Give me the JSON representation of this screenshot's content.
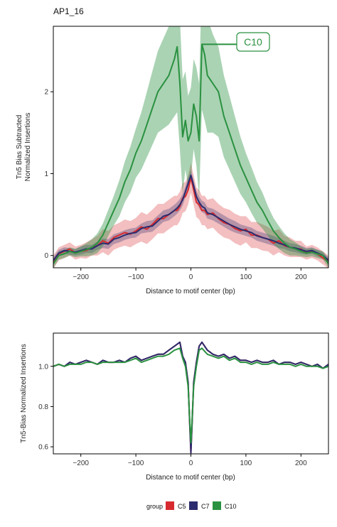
{
  "title": "AP1_16",
  "colors": {
    "C5": "#d62a2f",
    "C7": "#2b2b6e",
    "C10": "#2a9140"
  },
  "legend": {
    "title": "group",
    "items": [
      "C5",
      "C7",
      "C10"
    ]
  },
  "chart_data": [
    {
      "type": "line",
      "panel": "top",
      "title": "AP1_16",
      "xlabel": "Distance to motif center (bp)",
      "ylabel": [
        "Tn5 Bias Subtracted",
        "Normalized Insertions"
      ],
      "xlim": [
        -250,
        250
      ],
      "ylim": [
        -0.15,
        2.8
      ],
      "xticks": [
        -200,
        -100,
        0,
        100,
        200
      ],
      "xtick_labels": [
        "−200",
        "−100",
        "0",
        "100",
        "200"
      ],
      "yticks": [
        0,
        1,
        2
      ],
      "ytick_labels": [
        "0",
        "1",
        "2"
      ],
      "grid": false,
      "annotation": {
        "text": "C10",
        "series": "C10",
        "x": 20,
        "y": 2.58
      },
      "x": [
        -250,
        -240,
        -230,
        -220,
        -210,
        -200,
        -190,
        -180,
        -170,
        -160,
        -150,
        -140,
        -130,
        -120,
        -110,
        -100,
        -90,
        -80,
        -70,
        -60,
        -50,
        -40,
        -30,
        -25,
        -20,
        -15,
        -10,
        -5,
        0,
        5,
        10,
        15,
        20,
        25,
        30,
        40,
        50,
        60,
        70,
        80,
        90,
        100,
        110,
        120,
        130,
        140,
        150,
        160,
        170,
        180,
        190,
        200,
        210,
        220,
        230,
        240,
        250
      ],
      "series": [
        {
          "name": "C5",
          "values": [
            -0.08,
            0.02,
            0.05,
            0.08,
            0.03,
            0.05,
            0.06,
            0.1,
            0.12,
            0.18,
            0.15,
            0.22,
            0.25,
            0.28,
            0.26,
            0.3,
            0.35,
            0.32,
            0.38,
            0.45,
            0.45,
            0.5,
            0.55,
            0.55,
            0.6,
            0.7,
            0.72,
            0.8,
            0.95,
            0.8,
            0.65,
            0.62,
            0.55,
            0.55,
            0.5,
            0.52,
            0.45,
            0.4,
            0.38,
            0.33,
            0.3,
            0.32,
            0.25,
            0.25,
            0.22,
            0.2,
            0.15,
            0.18,
            0.12,
            0.1,
            0.08,
            0.08,
            0.03,
            0.05,
            0.02,
            -0.03,
            -0.08
          ],
          "band": [
            0.08,
            0.08,
            0.08,
            0.08,
            0.08,
            0.08,
            0.1,
            0.1,
            0.12,
            0.14,
            0.15,
            0.15,
            0.15,
            0.16,
            0.16,
            0.16,
            0.18,
            0.18,
            0.18,
            0.18,
            0.18,
            0.18,
            0.18,
            0.18,
            0.18,
            0.18,
            0.18,
            0.18,
            0.18,
            0.18,
            0.18,
            0.18,
            0.18,
            0.18,
            0.18,
            0.18,
            0.18,
            0.18,
            0.18,
            0.18,
            0.18,
            0.16,
            0.16,
            0.16,
            0.16,
            0.15,
            0.15,
            0.14,
            0.12,
            0.12,
            0.1,
            0.1,
            0.08,
            0.08,
            0.08,
            0.08,
            0.08
          ]
        },
        {
          "name": "C7",
          "values": [
            -0.06,
            0.03,
            0.06,
            0.05,
            0.04,
            0.06,
            0.08,
            0.08,
            0.12,
            0.15,
            0.14,
            0.2,
            0.22,
            0.25,
            0.27,
            0.28,
            0.33,
            0.35,
            0.36,
            0.42,
            0.48,
            0.5,
            0.55,
            0.58,
            0.62,
            0.68,
            0.78,
            0.88,
            0.98,
            0.85,
            0.72,
            0.65,
            0.6,
            0.58,
            0.52,
            0.5,
            0.46,
            0.42,
            0.38,
            0.35,
            0.32,
            0.3,
            0.28,
            0.24,
            0.22,
            0.2,
            0.18,
            0.15,
            0.13,
            0.1,
            0.09,
            0.07,
            0.05,
            0.06,
            0.03,
            0.0,
            -0.06
          ],
          "band": [
            0.04,
            0.04,
            0.04,
            0.04,
            0.04,
            0.05,
            0.05,
            0.05,
            0.05,
            0.06,
            0.06,
            0.06,
            0.06,
            0.06,
            0.06,
            0.06,
            0.06,
            0.07,
            0.07,
            0.07,
            0.07,
            0.07,
            0.07,
            0.07,
            0.07,
            0.07,
            0.07,
            0.07,
            0.07,
            0.07,
            0.07,
            0.07,
            0.07,
            0.07,
            0.07,
            0.07,
            0.07,
            0.07,
            0.07,
            0.07,
            0.06,
            0.06,
            0.06,
            0.06,
            0.06,
            0.06,
            0.06,
            0.06,
            0.05,
            0.05,
            0.05,
            0.05,
            0.04,
            0.04,
            0.04,
            0.04,
            0.04
          ]
        },
        {
          "name": "C10",
          "values": [
            -0.1,
            0.0,
            0.02,
            0.05,
            0.03,
            0.05,
            0.07,
            0.1,
            0.15,
            0.25,
            0.4,
            0.55,
            0.7,
            0.9,
            1.05,
            1.25,
            1.4,
            1.6,
            1.8,
            2.0,
            2.1,
            2.2,
            2.4,
            2.55,
            2.1,
            1.45,
            1.65,
            1.4,
            1.5,
            1.85,
            1.7,
            1.4,
            2.58,
            2.45,
            2.2,
            2.1,
            2.0,
            1.7,
            1.5,
            1.3,
            1.1,
            0.95,
            0.8,
            0.65,
            0.55,
            0.42,
            0.3,
            0.22,
            0.15,
            0.1,
            0.08,
            0.05,
            0.03,
            0.04,
            0.02,
            0.0,
            -0.1
          ],
          "band": [
            0.05,
            0.05,
            0.05,
            0.05,
            0.05,
            0.06,
            0.08,
            0.1,
            0.12,
            0.14,
            0.16,
            0.18,
            0.22,
            0.25,
            0.28,
            0.3,
            0.35,
            0.4,
            0.45,
            0.5,
            0.55,
            0.6,
            0.7,
            0.8,
            0.8,
            0.7,
            0.6,
            0.55,
            0.55,
            0.55,
            0.6,
            0.7,
            0.8,
            0.8,
            0.7,
            0.6,
            0.55,
            0.5,
            0.45,
            0.4,
            0.35,
            0.3,
            0.28,
            0.25,
            0.22,
            0.18,
            0.16,
            0.14,
            0.12,
            0.1,
            0.08,
            0.06,
            0.05,
            0.05,
            0.05,
            0.05,
            0.05
          ]
        }
      ]
    },
    {
      "type": "line",
      "panel": "bottom",
      "xlabel": "Distance to motif center (bp)",
      "ylabel": "Tn5-Bias Normalized Insertions",
      "xlim": [
        -250,
        250
      ],
      "ylim": [
        0.565,
        1.165
      ],
      "xticks": [
        -200,
        -100,
        0,
        100,
        200
      ],
      "xtick_labels": [
        "−200",
        "−100",
        "0",
        "100",
        "200"
      ],
      "yticks": [
        0.6,
        0.8,
        1.0
      ],
      "ytick_labels": [
        "0.6",
        "0.8",
        "1.0"
      ],
      "grid": false,
      "x": [
        -250,
        -240,
        -230,
        -220,
        -210,
        -200,
        -190,
        -180,
        -170,
        -160,
        -150,
        -140,
        -130,
        -120,
        -110,
        -100,
        -90,
        -80,
        -70,
        -60,
        -50,
        -40,
        -30,
        -20,
        -15,
        -10,
        -5,
        -2,
        0,
        2,
        5,
        10,
        15,
        20,
        30,
        40,
        50,
        60,
        70,
        80,
        90,
        100,
        110,
        120,
        130,
        140,
        150,
        160,
        170,
        180,
        190,
        200,
        210,
        220,
        230,
        240,
        250
      ],
      "series": [
        {
          "name": "C5",
          "values": [
            1.0,
            1.01,
            1.0,
            1.02,
            1.01,
            1.02,
            1.03,
            1.02,
            1.01,
            1.03,
            1.02,
            1.02,
            1.03,
            1.02,
            1.04,
            1.05,
            1.03,
            1.04,
            1.05,
            1.06,
            1.06,
            1.08,
            1.1,
            1.12,
            1.05,
            1.02,
            0.92,
            0.7,
            0.57,
            0.7,
            0.92,
            1.02,
            1.1,
            1.12,
            1.08,
            1.06,
            1.05,
            1.06,
            1.04,
            1.05,
            1.03,
            1.03,
            1.02,
            1.03,
            1.02,
            1.02,
            1.03,
            1.01,
            1.02,
            1.02,
            1.01,
            1.02,
            1.01,
            1.0,
            1.01,
            0.99,
            1.01
          ]
        },
        {
          "name": "C7",
          "values": [
            1.0,
            1.01,
            1.0,
            1.02,
            1.01,
            1.02,
            1.03,
            1.02,
            1.01,
            1.03,
            1.02,
            1.02,
            1.03,
            1.02,
            1.04,
            1.05,
            1.03,
            1.04,
            1.05,
            1.06,
            1.06,
            1.08,
            1.1,
            1.12,
            1.05,
            1.02,
            0.92,
            0.7,
            0.57,
            0.7,
            0.92,
            1.02,
            1.1,
            1.12,
            1.08,
            1.06,
            1.05,
            1.06,
            1.04,
            1.05,
            1.03,
            1.03,
            1.02,
            1.03,
            1.02,
            1.02,
            1.03,
            1.01,
            1.02,
            1.02,
            1.01,
            1.02,
            1.01,
            1.0,
            1.01,
            0.99,
            1.01
          ]
        },
        {
          "name": "C10",
          "values": [
            1.0,
            1.01,
            1.0,
            1.01,
            1.01,
            1.01,
            1.02,
            1.02,
            1.01,
            1.02,
            1.02,
            1.02,
            1.02,
            1.02,
            1.03,
            1.04,
            1.02,
            1.03,
            1.04,
            1.05,
            1.05,
            1.06,
            1.08,
            1.09,
            1.04,
            1.0,
            0.9,
            0.72,
            0.62,
            0.72,
            0.9,
            1.0,
            1.08,
            1.09,
            1.06,
            1.05,
            1.04,
            1.05,
            1.03,
            1.04,
            1.02,
            1.02,
            1.01,
            1.02,
            1.01,
            1.01,
            1.02,
            1.01,
            1.01,
            1.01,
            1.0,
            1.01,
            1.0,
            1.0,
            1.0,
            0.99,
            1.0
          ]
        }
      ]
    }
  ]
}
